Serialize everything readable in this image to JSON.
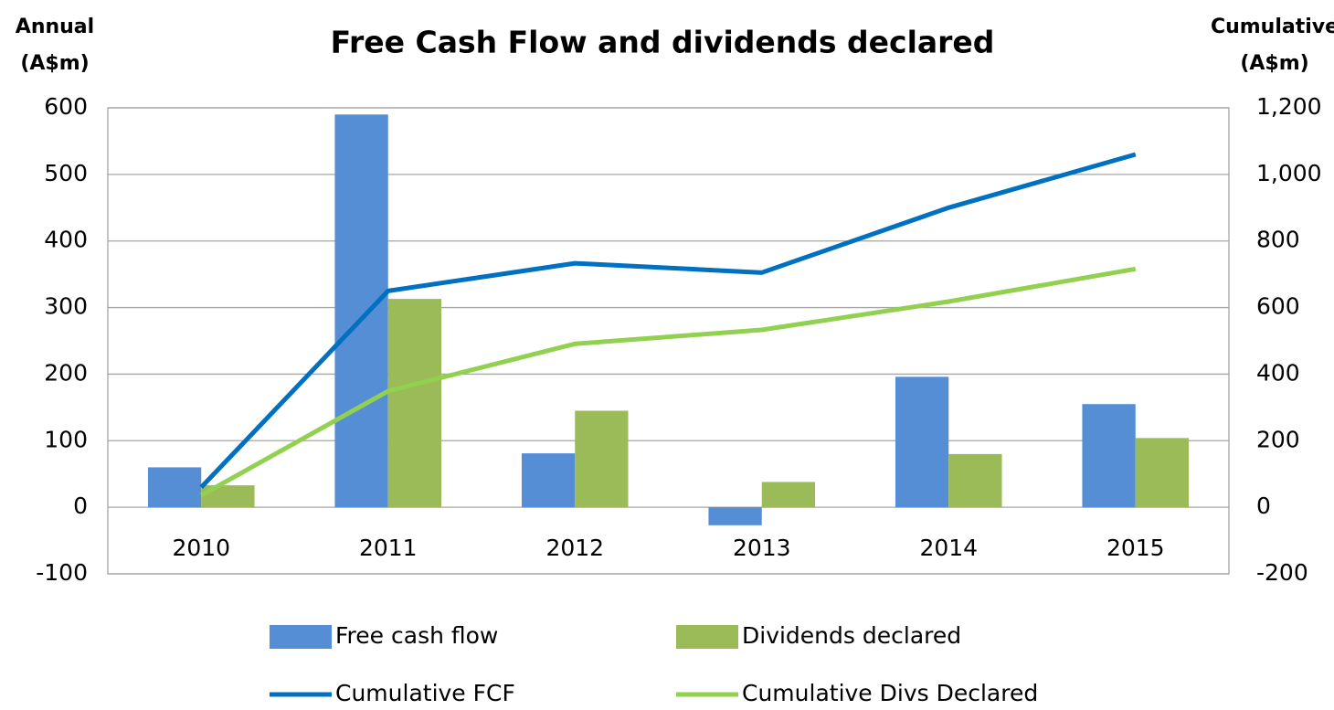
{
  "chart_data": {
    "type": "bar_line",
    "title": "Free Cash Flow and dividends declared",
    "ylabel": [
      "Annual",
      "(A$m)"
    ],
    "y2label": [
      "Cumulative",
      "(A$m)"
    ],
    "categories": [
      "2010",
      "2011",
      "2012",
      "2013",
      "2014",
      "2015"
    ],
    "series": [
      {
        "name": "Free cash flow",
        "type": "bar",
        "color": "#558ed5",
        "values": [
          60,
          590,
          81,
          -27,
          196,
          155
        ]
      },
      {
        "name": "Dividends declared",
        "type": "bar",
        "color": "#9bbb59",
        "values": [
          33,
          313,
          145,
          38,
          80,
          104
        ]
      },
      {
        "name": "Cumulative FCF",
        "type": "line",
        "axis": "y2",
        "color": "#0070c0",
        "values": [
          60,
          650,
          733,
          705,
          900,
          1060
        ]
      },
      {
        "name": "Cumulative Divs Declared",
        "type": "line",
        "axis": "y2",
        "color": "#92d050",
        "values": [
          36,
          349,
          491,
          533,
          618,
          716
        ]
      }
    ],
    "ylim": [
      -100,
      600
    ],
    "yticks": [
      -100,
      0,
      100,
      200,
      300,
      400,
      500,
      600
    ],
    "y2lim": [
      -200,
      1200
    ],
    "y2ticks": [
      -200,
      0,
      200,
      400,
      600,
      800,
      {
        "value": 1000,
        "label": "1,000"
      },
      {
        "value": 1200,
        "label": "1,200"
      }
    ],
    "grid": true,
    "legend": "bottom"
  }
}
